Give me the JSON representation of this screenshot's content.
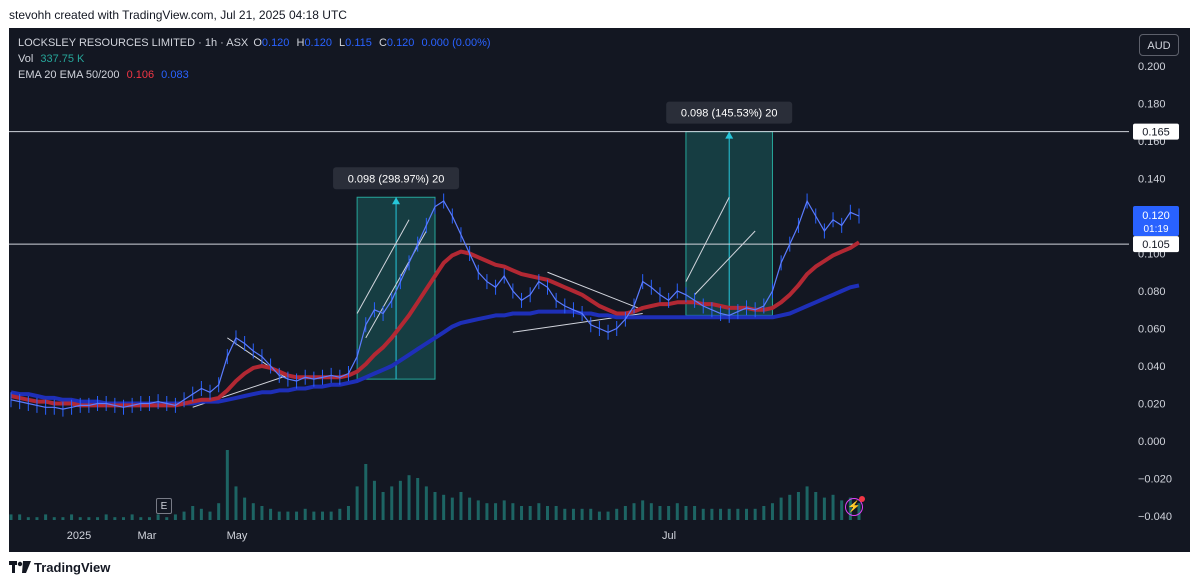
{
  "credit": "stevohh created with TradingView.com, Jul 21, 2025 04:18 UTC",
  "legend": {
    "title": "LOCKSLEY RESOURCES LIMITED · 1h · ASX",
    "o_label": "O",
    "o_value": "0.120",
    "h_label": "H",
    "h_value": "0.120",
    "l_label": "L",
    "l_value": "0.115",
    "c_label": "C",
    "c_value": "0.120",
    "change": "0.000 (0.00%)",
    "vol_label": "Vol",
    "vol_value": "337.75 K",
    "ema_label": "EMA 20 EMA 50/200",
    "ema20_value": "0.106",
    "ema50_value": "0.083"
  },
  "currency": "AUD",
  "earnings_marker": "E",
  "footer_brand": "TradingView",
  "colors": {
    "background": "#131722",
    "ema20": "#b22833",
    "ema50": "#1e2fb8",
    "candles": "#2962ff",
    "volume": "#26a69a",
    "measure_fill": "#1b6d6b",
    "price_label": "#2962ff"
  },
  "chart_data": {
    "type": "line",
    "title": "LOCKSLEY RESOURCES LIMITED · 1h · ASX",
    "xlabel": "",
    "ylabel": "",
    "ylim": [
      -0.04,
      0.2
    ],
    "grid": false,
    "x_ticks": [
      "2025",
      "Mar",
      "May",
      "Jul"
    ],
    "y_ticks": [
      "0.200",
      "0.180",
      "0.160",
      "0.140",
      "0.120",
      "0.100",
      "0.080",
      "0.060",
      "0.040",
      "0.020",
      "0.000",
      "−0.020",
      "−0.040"
    ],
    "current_price": "0.120",
    "countdown": "01:19",
    "horizontal_lines": [
      {
        "value": 0.165,
        "label": "0.165"
      },
      {
        "value": 0.105,
        "label": "0.105"
      }
    ],
    "measurements": [
      {
        "label": "0.098 (298.97%) 20",
        "from": 0.033,
        "to": 0.13
      },
      {
        "label": "0.098 (145.53%) 20",
        "from": 0.067,
        "to": 0.165
      }
    ],
    "series": [
      {
        "name": "Price",
        "values": [
          0.022,
          0.021,
          0.02,
          0.019,
          0.018,
          0.018,
          0.017,
          0.018,
          0.019,
          0.019,
          0.02,
          0.02,
          0.019,
          0.018,
          0.019,
          0.02,
          0.02,
          0.021,
          0.02,
          0.019,
          0.022,
          0.025,
          0.028,
          0.026,
          0.03,
          0.045,
          0.055,
          0.052,
          0.048,
          0.045,
          0.04,
          0.035,
          0.033,
          0.032,
          0.034,
          0.033,
          0.034,
          0.035,
          0.034,
          0.036,
          0.045,
          0.062,
          0.07,
          0.068,
          0.075,
          0.085,
          0.095,
          0.105,
          0.115,
          0.125,
          0.128,
          0.12,
          0.11,
          0.1,
          0.09,
          0.085,
          0.082,
          0.088,
          0.08,
          0.075,
          0.078,
          0.085,
          0.082,
          0.075,
          0.072,
          0.07,
          0.068,
          0.062,
          0.06,
          0.058,
          0.06,
          0.065,
          0.072,
          0.085,
          0.082,
          0.078,
          0.075,
          0.08,
          0.078,
          0.075,
          0.072,
          0.07,
          0.068,
          0.067,
          0.069,
          0.071,
          0.07,
          0.072,
          0.08,
          0.095,
          0.105,
          0.115,
          0.128,
          0.12,
          0.112,
          0.118,
          0.115,
          0.122,
          0.12
        ]
      },
      {
        "name": "EMA 20",
        "values": [
          0.024,
          0.023,
          0.022,
          0.021,
          0.021,
          0.02,
          0.02,
          0.02,
          0.019,
          0.019,
          0.019,
          0.019,
          0.019,
          0.019,
          0.019,
          0.019,
          0.019,
          0.019,
          0.019,
          0.019,
          0.02,
          0.021,
          0.022,
          0.022,
          0.023,
          0.027,
          0.032,
          0.036,
          0.039,
          0.04,
          0.039,
          0.037,
          0.035,
          0.034,
          0.034,
          0.034,
          0.034,
          0.034,
          0.034,
          0.035,
          0.037,
          0.041,
          0.046,
          0.05,
          0.055,
          0.061,
          0.067,
          0.074,
          0.081,
          0.088,
          0.095,
          0.099,
          0.101,
          0.1,
          0.098,
          0.096,
          0.094,
          0.093,
          0.091,
          0.089,
          0.088,
          0.087,
          0.086,
          0.084,
          0.082,
          0.08,
          0.078,
          0.075,
          0.072,
          0.07,
          0.068,
          0.068,
          0.069,
          0.071,
          0.072,
          0.073,
          0.073,
          0.074,
          0.074,
          0.074,
          0.073,
          0.073,
          0.072,
          0.071,
          0.071,
          0.071,
          0.07,
          0.07,
          0.071,
          0.074,
          0.078,
          0.083,
          0.089,
          0.093,
          0.096,
          0.099,
          0.101,
          0.103,
          0.106
        ]
      },
      {
        "name": "EMA 50",
        "values": [
          0.026,
          0.025,
          0.025,
          0.024,
          0.023,
          0.023,
          0.022,
          0.022,
          0.021,
          0.021,
          0.021,
          0.02,
          0.02,
          0.02,
          0.02,
          0.02,
          0.02,
          0.02,
          0.02,
          0.02,
          0.02,
          0.02,
          0.021,
          0.021,
          0.021,
          0.022,
          0.023,
          0.024,
          0.025,
          0.026,
          0.026,
          0.027,
          0.027,
          0.028,
          0.028,
          0.029,
          0.029,
          0.03,
          0.03,
          0.031,
          0.032,
          0.034,
          0.036,
          0.038,
          0.04,
          0.043,
          0.046,
          0.049,
          0.052,
          0.055,
          0.058,
          0.061,
          0.063,
          0.064,
          0.065,
          0.066,
          0.067,
          0.067,
          0.068,
          0.068,
          0.068,
          0.069,
          0.069,
          0.069,
          0.069,
          0.069,
          0.068,
          0.068,
          0.067,
          0.067,
          0.066,
          0.066,
          0.066,
          0.066,
          0.066,
          0.066,
          0.066,
          0.066,
          0.066,
          0.066,
          0.066,
          0.066,
          0.066,
          0.066,
          0.066,
          0.066,
          0.066,
          0.066,
          0.066,
          0.067,
          0.068,
          0.07,
          0.072,
          0.074,
          0.076,
          0.078,
          0.08,
          0.082,
          0.083
        ]
      }
    ],
    "volume": [
      2,
      2,
      1,
      1,
      2,
      1,
      1,
      2,
      1,
      1,
      1,
      2,
      1,
      1,
      2,
      1,
      1,
      2,
      1,
      2,
      3,
      5,
      4,
      3,
      6,
      25,
      12,
      8,
      6,
      5,
      4,
      3,
      3,
      3,
      4,
      3,
      3,
      3,
      4,
      5,
      12,
      20,
      14,
      10,
      12,
      14,
      16,
      15,
      12,
      10,
      9,
      8,
      10,
      8,
      7,
      6,
      6,
      7,
      6,
      5,
      5,
      6,
      5,
      5,
      4,
      4,
      4,
      4,
      3,
      3,
      4,
      5,
      6,
      7,
      6,
      5,
      5,
      6,
      5,
      5,
      4,
      4,
      4,
      4,
      4,
      4,
      4,
      5,
      6,
      8,
      9,
      10,
      12,
      10,
      8,
      9,
      7,
      8,
      6
    ]
  }
}
